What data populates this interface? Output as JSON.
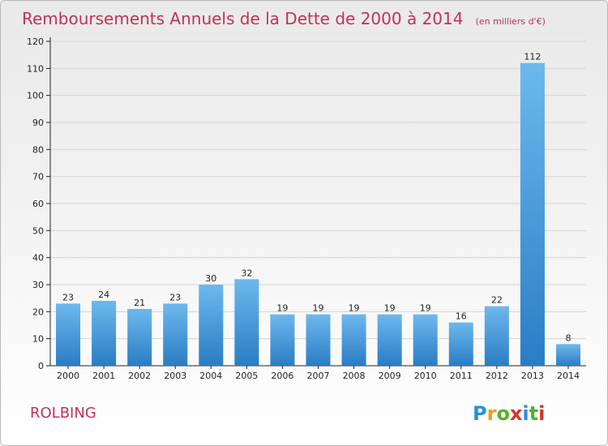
{
  "title": "Remboursements Annuels de la Dette de 2000 à 2014",
  "unit": "(en milliers d'€)",
  "place": "ROLBING",
  "logo": {
    "text": "Proxiti",
    "letters": [
      "P",
      "r",
      "o",
      "x",
      "i",
      "t",
      "i"
    ],
    "letter_colors": [
      "#2a8fd4",
      "#f29a1f",
      "#55b030",
      "#d8332a",
      "#2a8fd4",
      "#55b030",
      "#d8332a"
    ]
  },
  "colors": {
    "title": "#c0325a",
    "bar_light": "#6db8ee",
    "bar_dark": "#2a7dc4",
    "axis": "#222222",
    "grid": "#d4d4d4"
  },
  "chart_data": {
    "type": "bar",
    "title": "Remboursements Annuels de la Dette de 2000 à 2014",
    "categories": [
      "2000",
      "2001",
      "2002",
      "2003",
      "2004",
      "2005",
      "2006",
      "2007",
      "2008",
      "2009",
      "2010",
      "2011",
      "2012",
      "2013",
      "2014"
    ],
    "values": [
      23,
      24,
      21,
      23,
      30,
      32,
      19,
      19,
      19,
      19,
      19,
      16,
      22,
      112,
      8
    ],
    "xlabel": "",
    "ylabel": "",
    "ylim": [
      0,
      120
    ],
    "yticks": [
      0,
      10,
      20,
      30,
      40,
      50,
      60,
      70,
      80,
      90,
      100,
      110,
      120
    ],
    "grid": true,
    "legend": "none"
  }
}
